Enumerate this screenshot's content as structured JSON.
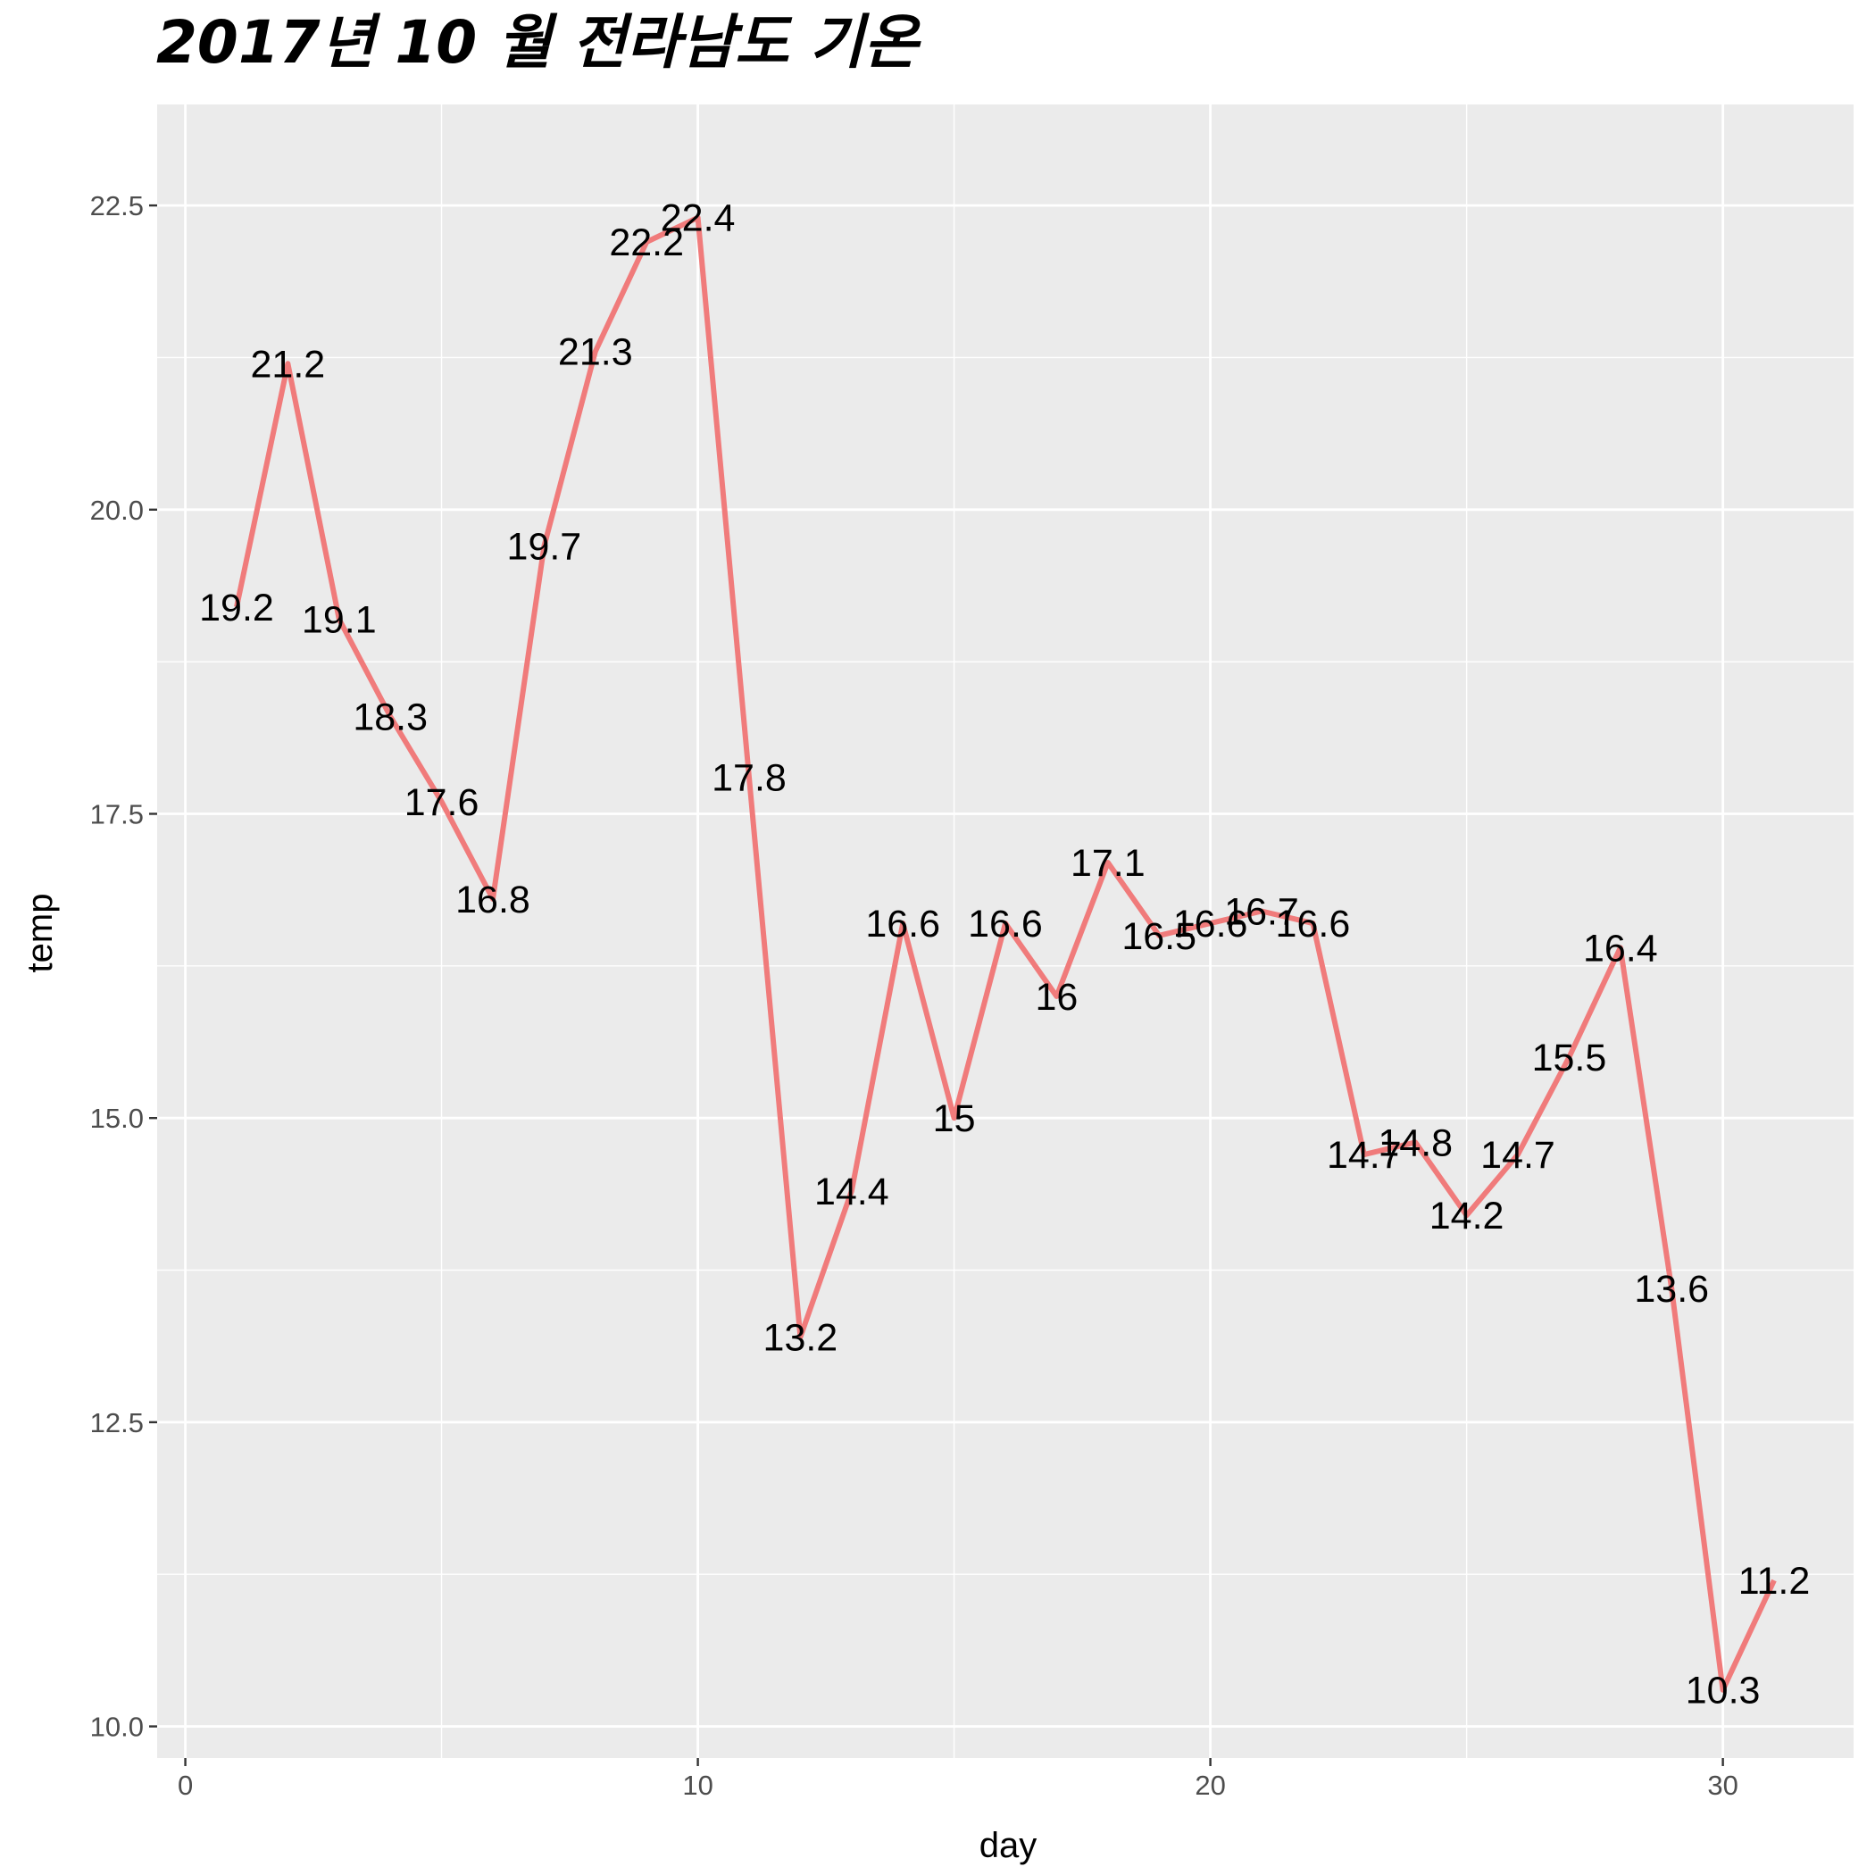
{
  "chart_data": {
    "type": "line",
    "title": "2017년 10 월 전라남도 기온",
    "xlabel": "day",
    "ylabel": "temp",
    "xlim": [
      -0.55,
      32.55
    ],
    "ylim": [
      9.74,
      23.33
    ],
    "x_ticks": [
      0,
      10,
      20,
      30
    ],
    "x_tick_labels": [
      "0",
      "10",
      "20",
      "30"
    ],
    "y_ticks": [
      10.0,
      12.5,
      15.0,
      17.5,
      20.0,
      22.5
    ],
    "y_tick_labels": [
      "10.0",
      "12.5",
      "15.0",
      "17.5",
      "20.0",
      "22.5"
    ],
    "x_minor_ticks": [
      5,
      15,
      25
    ],
    "y_minor_ticks": [
      11.25,
      13.75,
      16.25,
      18.75,
      21.25
    ],
    "grid": true,
    "legend": false,
    "colors": {
      "line": "#F07B7B",
      "panel": "#EBEBEB",
      "grid": "#FFFFFF",
      "text": "#000000",
      "tick_text": "#4D4D4D"
    },
    "series": [
      {
        "x": [
          1,
          2,
          3,
          4,
          5,
          6,
          7,
          8,
          9,
          10,
          11,
          12,
          13,
          14,
          15,
          16,
          17,
          18,
          19,
          20,
          21,
          22,
          23,
          24,
          25,
          26,
          27,
          28,
          29,
          30,
          31
        ],
        "values": [
          19.2,
          21.2,
          19.1,
          18.3,
          17.6,
          16.8,
          19.7,
          21.3,
          22.2,
          22.4,
          17.8,
          13.2,
          14.4,
          16.6,
          15.0,
          16.6,
          16.0,
          17.1,
          16.5,
          16.6,
          16.7,
          16.6,
          14.7,
          14.8,
          14.2,
          14.7,
          15.5,
          16.4,
          13.6,
          10.3,
          11.2
        ],
        "labels": [
          "19.2",
          "21.2",
          "19.1",
          "18.3",
          "17.6",
          "16.8",
          "19.7",
          "21.3",
          "22.2",
          "22.4",
          "17.8",
          "13.2",
          "14.4",
          "16.6",
          "15",
          "16.6",
          "16",
          "17.1",
          "16.5",
          "16.6",
          "16.7",
          "16.6",
          "14.7",
          "14.8",
          "14.2",
          "14.7",
          "15.5",
          "16.4",
          "13.6",
          "10.3",
          "11.2"
        ]
      }
    ]
  }
}
